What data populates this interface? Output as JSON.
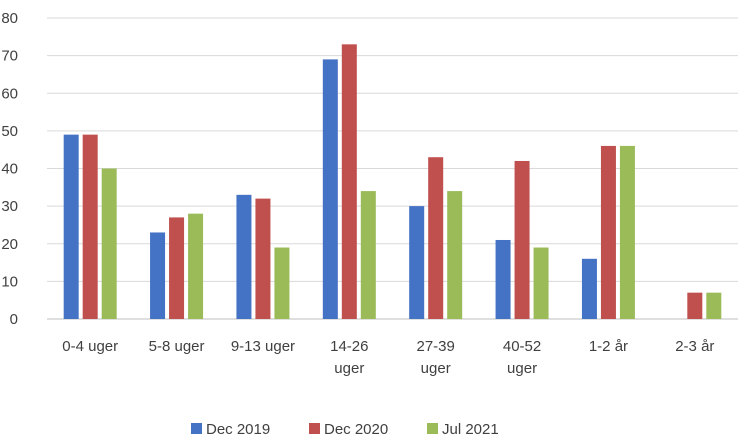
{
  "chart_data": {
    "type": "bar",
    "title": "",
    "xlabel": "",
    "ylabel": "",
    "ylim": [
      0,
      80
    ],
    "yticks": [
      0,
      10,
      20,
      30,
      40,
      50,
      60,
      70,
      80
    ],
    "grid": true,
    "legend_position": "bottom",
    "categories": [
      [
        "0-4 uger"
      ],
      [
        "5-8 uger"
      ],
      [
        "9-13 uger"
      ],
      [
        "14-26",
        "uger"
      ],
      [
        "27-39",
        "uger"
      ],
      [
        "40-52",
        "uger"
      ],
      [
        "1-2 år"
      ],
      [
        "2-3 år"
      ]
    ],
    "series": [
      {
        "name": "Dec 2019",
        "color": "#4472c4",
        "values": [
          49,
          23,
          33,
          69,
          30,
          21,
          16,
          null
        ]
      },
      {
        "name": "Dec 2020",
        "color": "#c0504d",
        "values": [
          49,
          27,
          32,
          73,
          43,
          42,
          46,
          7
        ]
      },
      {
        "name": "Jul 2021",
        "color": "#9bbb59",
        "values": [
          40,
          28,
          19,
          34,
          34,
          19,
          46,
          7
        ]
      }
    ]
  }
}
